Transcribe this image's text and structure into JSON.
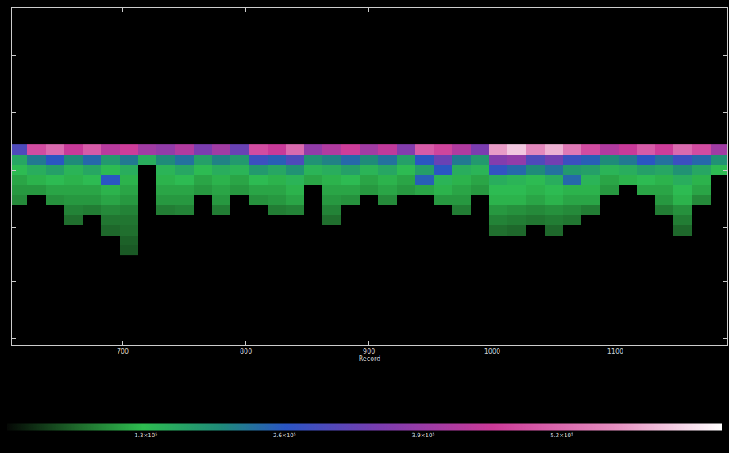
{
  "chart_data": {
    "type": "heatmap",
    "x_label": "Record",
    "xlim": [
      610,
      1191
    ],
    "xticks": [
      700,
      800,
      900,
      1000,
      1100
    ],
    "ylim": [
      100,
      0
    ],
    "yticks": [
      14,
      31,
      48,
      65,
      81,
      98
    ],
    "tick_labels": "x",
    "grid": false,
    "x": [
      615,
      630,
      645,
      660,
      675,
      690,
      705,
      720,
      735,
      750,
      765,
      780,
      795,
      810,
      825,
      840,
      855,
      870,
      885,
      900,
      915,
      930,
      945,
      960,
      975,
      990,
      1005,
      1020,
      1035,
      1050,
      1065,
      1080,
      1095,
      1110,
      1125,
      1140,
      1155,
      1170,
      1185
    ],
    "y": [
      42,
      45,
      48,
      51,
      54,
      57,
      60,
      63,
      66,
      69,
      72
    ],
    "z": [
      [
        300000,
        480000,
        520000,
        450000,
        500000,
        430000,
        460000,
        400000,
        380000,
        420000,
        350000,
        400000,
        330000,
        480000,
        450000,
        520000,
        380000,
        420000,
        460000,
        400000,
        440000,
        360000,
        500000,
        470000,
        420000,
        350000,
        580000,
        620000,
        560000,
        600000,
        540000,
        480000,
        420000,
        450000,
        500000,
        460000,
        520000,
        480000,
        400000
      ],
      [
        160000,
        220000,
        260000,
        200000,
        240000,
        180000,
        220000,
        150000,
        200000,
        230000,
        170000,
        210000,
        180000,
        280000,
        250000,
        300000,
        190000,
        210000,
        240000,
        200000,
        230000,
        170000,
        260000,
        330000,
        220000,
        180000,
        360000,
        380000,
        300000,
        340000,
        280000,
        250000,
        200000,
        220000,
        260000,
        230000,
        280000,
        240000,
        190000
      ],
      [
        130000,
        150000,
        170000,
        140000,
        160000,
        130000,
        150000,
        null,
        140000,
        160000,
        130000,
        150000,
        140000,
        180000,
        160000,
        190000,
        140000,
        150000,
        170000,
        140000,
        160000,
        130000,
        170000,
        260000,
        150000,
        140000,
        270000,
        240000,
        200000,
        230000,
        180000,
        170000,
        140000,
        150000,
        170000,
        160000,
        190000,
        160000,
        130000
      ],
      [
        110000,
        120000,
        130000,
        120000,
        130000,
        260000,
        120000,
        null,
        120000,
        130000,
        110000,
        120000,
        110000,
        130000,
        120000,
        140000,
        110000,
        120000,
        130000,
        110000,
        120000,
        110000,
        250000,
        140000,
        120000,
        110000,
        150000,
        140000,
        130000,
        150000,
        240000,
        140000,
        110000,
        120000,
        130000,
        120000,
        150000,
        120000,
        null
      ],
      [
        100000,
        100000,
        110000,
        110000,
        110000,
        120000,
        110000,
        null,
        110000,
        110000,
        100000,
        110000,
        100000,
        110000,
        110000,
        120000,
        null,
        110000,
        110000,
        100000,
        110000,
        100000,
        110000,
        120000,
        110000,
        100000,
        130000,
        130000,
        120000,
        130000,
        120000,
        120000,
        100000,
        null,
        110000,
        110000,
        130000,
        110000,
        null
      ],
      [
        90000,
        null,
        95000,
        100000,
        100000,
        110000,
        100000,
        null,
        100000,
        100000,
        null,
        100000,
        null,
        95000,
        100000,
        110000,
        null,
        100000,
        95000,
        null,
        90000,
        null,
        null,
        100000,
        100000,
        null,
        120000,
        120000,
        110000,
        120000,
        110000,
        110000,
        null,
        null,
        null,
        100000,
        120000,
        90000,
        null
      ],
      [
        null,
        null,
        null,
        85000,
        80000,
        90000,
        85000,
        null,
        80000,
        85000,
        null,
        80000,
        null,
        null,
        80000,
        85000,
        null,
        85000,
        null,
        null,
        null,
        null,
        null,
        null,
        80000,
        null,
        100000,
        95000,
        90000,
        95000,
        90000,
        80000,
        null,
        null,
        null,
        80000,
        95000,
        null,
        null
      ],
      [
        null,
        null,
        null,
        70000,
        null,
        75000,
        75000,
        null,
        null,
        null,
        null,
        null,
        null,
        null,
        null,
        null,
        null,
        70000,
        null,
        null,
        null,
        null,
        null,
        null,
        null,
        null,
        85000,
        80000,
        75000,
        80000,
        75000,
        null,
        null,
        null,
        null,
        null,
        80000,
        null,
        null
      ],
      [
        null,
        null,
        null,
        null,
        null,
        65000,
        70000,
        null,
        null,
        null,
        null,
        null,
        null,
        null,
        null,
        null,
        null,
        null,
        null,
        null,
        null,
        null,
        null,
        null,
        null,
        null,
        70000,
        65000,
        null,
        65000,
        null,
        null,
        null,
        null,
        null,
        null,
        65000,
        null,
        null
      ],
      [
        null,
        null,
        null,
        null,
        null,
        null,
        60000,
        null,
        null,
        null,
        null,
        null,
        null,
        null,
        null,
        null,
        null,
        null,
        null,
        null,
        null,
        null,
        null,
        null,
        null,
        null,
        null,
        null,
        null,
        null,
        null,
        null,
        null,
        null,
        null,
        null,
        null,
        null,
        null
      ],
      [
        null,
        null,
        null,
        null,
        null,
        null,
        55000,
        null,
        null,
        null,
        null,
        null,
        null,
        null,
        null,
        null,
        null,
        null,
        null,
        null,
        null,
        null,
        null,
        null,
        null,
        null,
        null,
        null,
        null,
        null,
        null,
        null,
        null,
        null,
        null,
        null,
        null,
        null,
        null
      ]
    ],
    "colorbar_range": [
      0,
      670000
    ],
    "colorbar_ticks": [
      {
        "value": 130000,
        "label": "1.3×10⁵"
      },
      {
        "value": 260000,
        "label": "2.6×10⁵"
      },
      {
        "value": 390000,
        "label": "3.9×10⁵"
      },
      {
        "value": 520000,
        "label": "5.2×10⁵"
      }
    ]
  }
}
